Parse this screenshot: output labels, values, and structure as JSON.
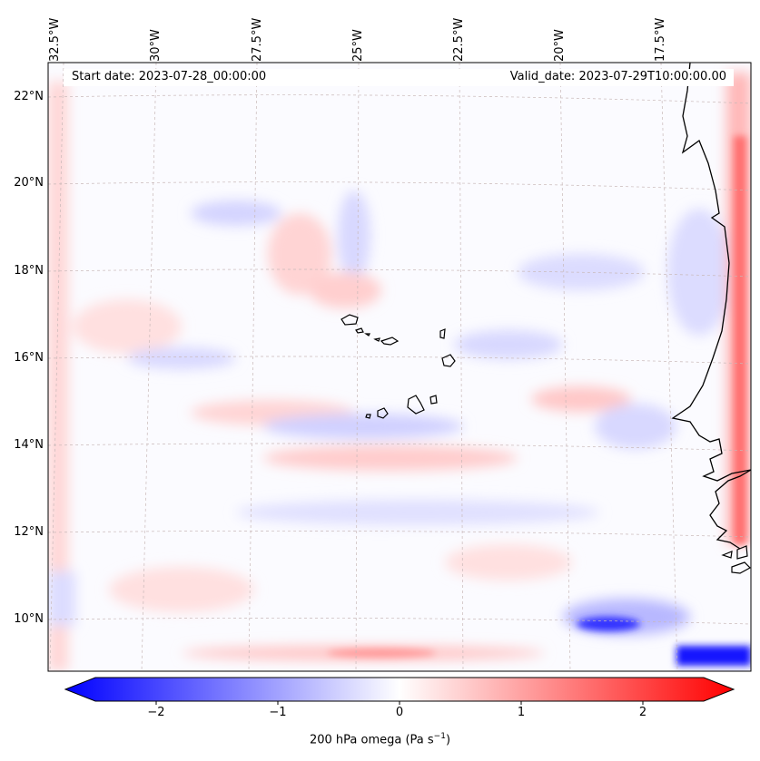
{
  "map": {
    "start_date": "Start date: 2023-07-28_00:00:00",
    "valid_date": "Valid_date: 2023-07-29T10:00:00.00",
    "lon_labels": [
      "32.5°W",
      "30°W",
      "27.5°W",
      "25°W",
      "22.5°W",
      "20°W",
      "17.5°W"
    ],
    "lat_labels": [
      "22°N",
      "20°N",
      "18°N",
      "16°N",
      "14°N",
      "12°N",
      "10°N"
    ]
  },
  "colorbar": {
    "ticks": [
      "−2",
      "−1",
      "0",
      "1",
      "2"
    ],
    "label": "200 hPa omega (Pa s",
    "label_sup": "−1",
    "label_end": ")",
    "vmin": -2.5,
    "vmax": 2.5,
    "colors": {
      "min": "#0000ff",
      "mid": "#ffffff",
      "max": "#ff0000"
    }
  }
}
